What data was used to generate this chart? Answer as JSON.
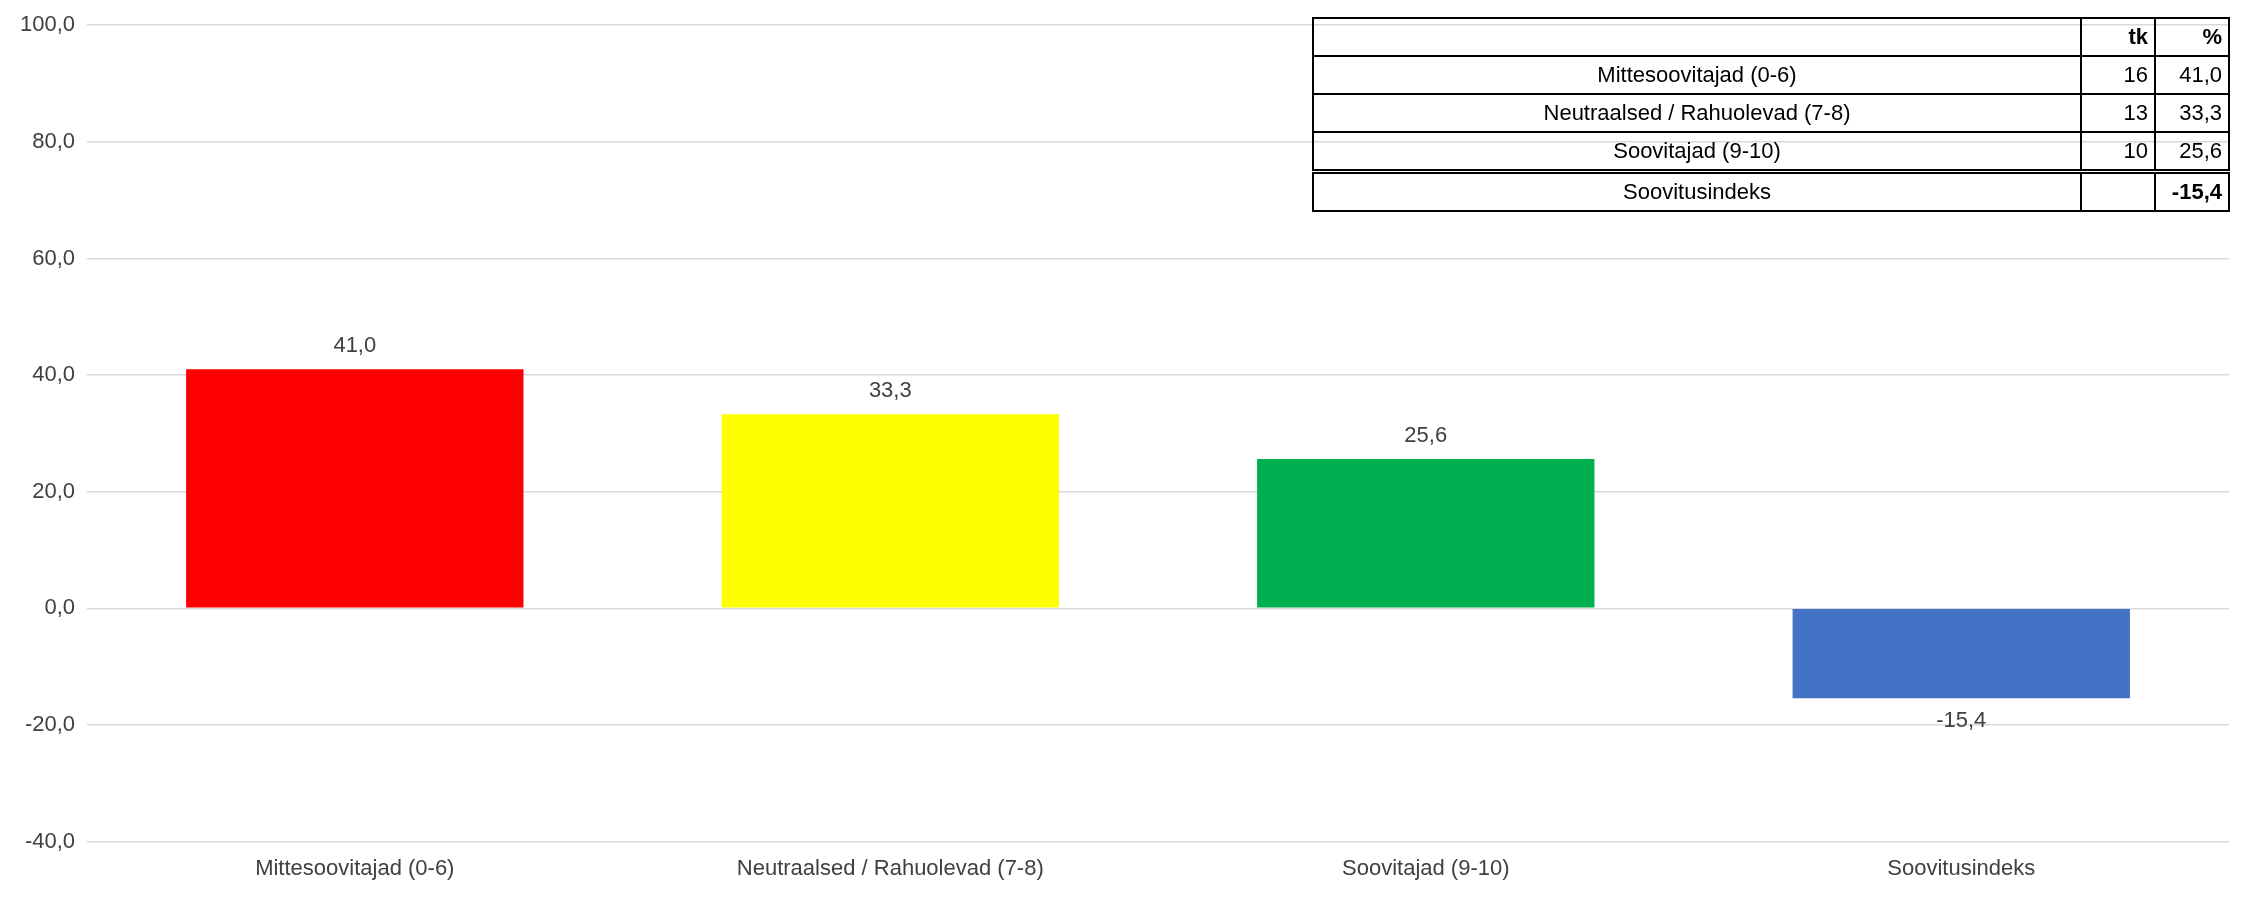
{
  "chart_data": {
    "type": "bar",
    "categories": [
      "Mittesoovitajad (0-6)",
      "Neutraalsed / Rahuolevad (7-8)",
      "Soovitajad (9-10)",
      "Soovitusindeks"
    ],
    "values": [
      41.0,
      33.3,
      25.6,
      -15.4
    ],
    "colors": [
      "#ff0000",
      "#ffff00",
      "#00b050",
      "#4472c4"
    ],
    "value_labels": [
      "41,0",
      "33,3",
      "25,6",
      "-15,4"
    ],
    "ylim": [
      -40,
      100
    ],
    "yticks": [
      {
        "value": -40,
        "label": "-40,0"
      },
      {
        "value": -20,
        "label": "-20,0"
      },
      {
        "value": 0,
        "label": "0,0"
      },
      {
        "value": 20,
        "label": "20,0"
      },
      {
        "value": 40,
        "label": "40,0"
      },
      {
        "value": 60,
        "label": "60,0"
      },
      {
        "value": 80,
        "label": "80,0"
      },
      {
        "value": 100,
        "label": "100,0"
      }
    ],
    "grid": "y",
    "annotations": [
      "tk",
      "%",
      "16",
      "13",
      "10"
    ]
  }
}
